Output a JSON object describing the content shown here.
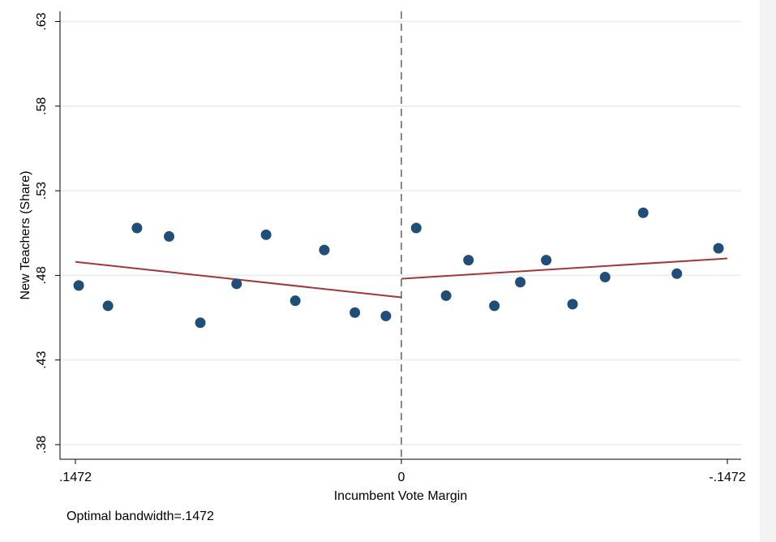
{
  "chart_data": {
    "type": "scatter",
    "xlabel": "Incumbent Vote Margin",
    "ylabel": "New Teachers (Share)",
    "xlim": [
      0.1472,
      -0.1472
    ],
    "ylim": [
      0.3795,
      0.6293
    ],
    "y_ticks": [
      {
        "value": 0.38,
        "label": ".38"
      },
      {
        "value": 0.43,
        "label": ".43"
      },
      {
        "value": 0.48,
        "label": ".48"
      },
      {
        "value": 0.53,
        "label": ".53"
      },
      {
        "value": 0.58,
        "label": ".58"
      },
      {
        "value": 0.63,
        "label": ".63"
      }
    ],
    "x_ticks": [
      {
        "value": 0.1472,
        "label": ".1472"
      },
      {
        "value": 0,
        "label": "0"
      },
      {
        "value": -0.1472,
        "label": "-.1472"
      }
    ],
    "grid": true,
    "cutoff": 0,
    "marker_color": "#1f4e79",
    "fit_color": "#a0373a",
    "points": [
      {
        "x": 0.1457,
        "y": 0.474
      },
      {
        "x": 0.1325,
        "y": 0.462
      },
      {
        "x": 0.1194,
        "y": 0.508
      },
      {
        "x": 0.1049,
        "y": 0.503
      },
      {
        "x": 0.0908,
        "y": 0.452
      },
      {
        "x": 0.0744,
        "y": 0.475
      },
      {
        "x": 0.0611,
        "y": 0.504
      },
      {
        "x": 0.0479,
        "y": 0.465
      },
      {
        "x": 0.0348,
        "y": 0.495
      },
      {
        "x": 0.021,
        "y": 0.458
      },
      {
        "x": 0.007,
        "y": 0.456
      },
      {
        "x": -0.0067,
        "y": 0.508
      },
      {
        "x": -0.0202,
        "y": 0.468
      },
      {
        "x": -0.0303,
        "y": 0.489
      },
      {
        "x": -0.042,
        "y": 0.462
      },
      {
        "x": -0.0537,
        "y": 0.476
      },
      {
        "x": -0.0654,
        "y": 0.489
      },
      {
        "x": -0.0773,
        "y": 0.463
      },
      {
        "x": -0.092,
        "y": 0.479
      },
      {
        "x": -0.1092,
        "y": 0.517
      },
      {
        "x": -0.1244,
        "y": 0.481
      },
      {
        "x": -0.1432,
        "y": 0.496
      }
    ],
    "fit_lines": [
      {
        "x": [
          0.1472,
          0.0
        ],
        "y": [
          0.488,
          0.467
        ]
      },
      {
        "x": [
          0.0,
          -0.1472
        ],
        "y": [
          0.478,
          0.49
        ]
      }
    ]
  },
  "note": "Optimal bandwidth=.1472"
}
